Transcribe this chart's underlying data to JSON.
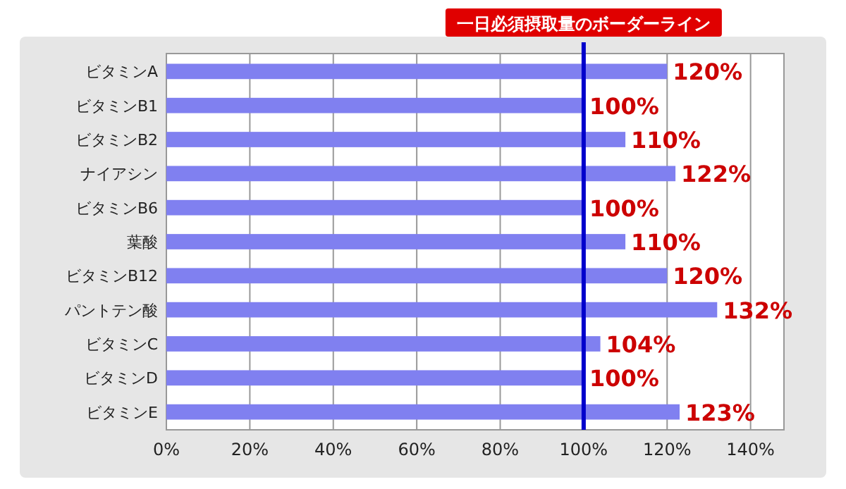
{
  "chart_data": {
    "type": "bar",
    "orientation": "horizontal",
    "categories": [
      "ビタミンA",
      "ビタミンB1",
      "ビタミンB2",
      "ナイアシン",
      "ビタミンB6",
      "葉酸",
      "ビタミンB12",
      "パントテン酸",
      "ビタミンC",
      "ビタミンD",
      "ビタミンE"
    ],
    "values": [
      120,
      100,
      110,
      122,
      100,
      110,
      120,
      132,
      104,
      100,
      123
    ],
    "value_labels": [
      "120%",
      "100%",
      "110%",
      "122%",
      "100%",
      "110%",
      "120%",
      "132%",
      "104%",
      "100%",
      "123%"
    ],
    "color": "#8080f0",
    "xlim": [
      0,
      148
    ],
    "xticks": [
      {
        "value": 0,
        "label": "0%"
      },
      {
        "value": 20,
        "label": "20%"
      },
      {
        "value": 40,
        "label": "40%"
      },
      {
        "value": 60,
        "label": "60%"
      },
      {
        "value": 80,
        "label": "80%"
      },
      {
        "value": 100,
        "label": "100%"
      },
      {
        "value": 120,
        "label": "120%"
      },
      {
        "value": 140,
        "label": "140%"
      }
    ],
    "grid": "x",
    "ref_lines": [
      {
        "axis": "x",
        "value": 100,
        "label": "一日必須摂取量のボーダーライン",
        "color": "#0000cc"
      }
    ]
  }
}
